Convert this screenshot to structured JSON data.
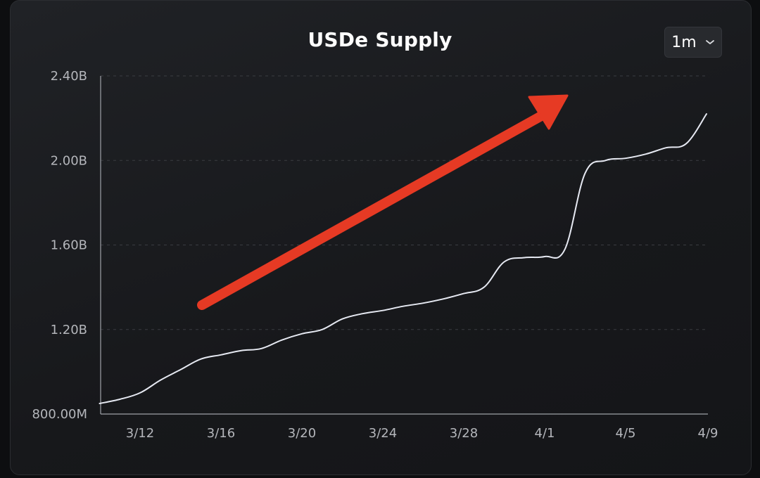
{
  "chart_data": {
    "type": "line",
    "title": "USDe Supply",
    "xlabel": "",
    "ylabel": "",
    "y_ticks": [
      "800.00M",
      "1.20B",
      "1.60B",
      "2.00B",
      "2.40B"
    ],
    "y_tick_values": [
      800000000,
      1200000000,
      1600000000,
      2000000000,
      2400000000
    ],
    "ylim": [
      800000000,
      2400000000
    ],
    "x_ticks": [
      "3/12",
      "3/16",
      "3/20",
      "3/24",
      "3/28",
      "4/1",
      "4/5",
      "4/9"
    ],
    "grid": "horizontal dashed",
    "line_color": "#e6e9f2",
    "annotation": {
      "type": "arrow",
      "color": "#e63a24",
      "meaning": "upward trend"
    },
    "series": [
      {
        "x": [
          "3/10",
          "3/11",
          "3/12",
          "3/13",
          "3/14",
          "3/15",
          "3/16",
          "3/17",
          "3/18",
          "3/19",
          "3/20",
          "3/21",
          "3/22",
          "3/23",
          "3/24",
          "3/25",
          "3/26",
          "3/27",
          "3/28",
          "3/29",
          "3/30",
          "3/31",
          "4/1",
          "4/2",
          "4/3",
          "4/4",
          "4/5",
          "4/6",
          "4/7",
          "4/8",
          "4/9"
        ],
        "y": [
          850000000,
          870000000,
          900000000,
          960000000,
          1010000000,
          1060000000,
          1080000000,
          1100000000,
          1110000000,
          1150000000,
          1180000000,
          1200000000,
          1250000000,
          1275000000,
          1290000000,
          1310000000,
          1325000000,
          1345000000,
          1370000000,
          1400000000,
          1520000000,
          1540000000,
          1545000000,
          1580000000,
          1940000000,
          2000000000,
          2010000000,
          2030000000,
          2060000000,
          2080000000,
          2220000000
        ]
      }
    ]
  },
  "controls": {
    "range_label": "1m",
    "range_icon": "chevron-down-icon"
  }
}
